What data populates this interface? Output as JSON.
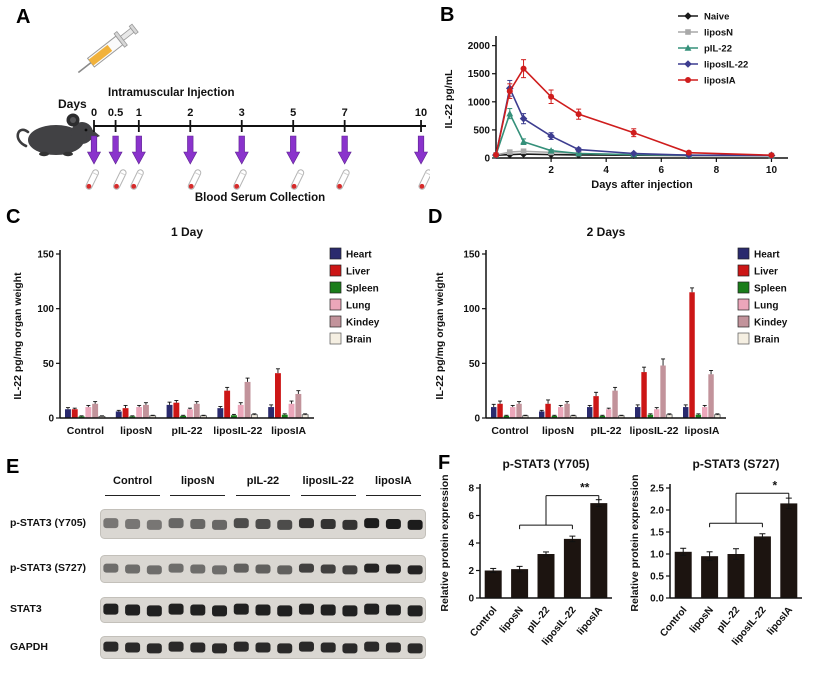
{
  "panel_labels": {
    "a": "A",
    "b": "B",
    "c": "C",
    "d": "D",
    "e": "E",
    "f": "F"
  },
  "panel_a": {
    "days_label": "Days",
    "injection_label": "Intramuscular Injection",
    "collection_label": "Blood Serum Collection",
    "timeline_days": [
      "0",
      "0.5",
      "1",
      "2",
      "3",
      "5",
      "7",
      "10"
    ],
    "arrow_color": "#8a33cc"
  },
  "panel_e": {
    "groups": [
      "Control",
      "liposN",
      "pIL-22",
      "liposIL-22",
      "liposIA"
    ],
    "rows": [
      "p-STAT3 (Y705)",
      "p-STAT3 (S727)",
      "STAT3",
      "GAPDH"
    ],
    "lanes_per_group": 3
  },
  "chart_data": [
    {
      "id": "b",
      "type": "line",
      "title": "",
      "xlabel": "Days after injection",
      "ylabel": "IL-22 pg/mL",
      "xlim": [
        0,
        10.6
      ],
      "ylim": [
        0,
        2100
      ],
      "xticks": [
        2,
        4,
        6,
        8,
        10
      ],
      "yticks": [
        0,
        500,
        1000,
        1500,
        2000
      ],
      "x": [
        0,
        0.5,
        1,
        2,
        3,
        5,
        7,
        10
      ],
      "series": [
        {
          "name": "Naive",
          "color": "#1a1a1a",
          "marker": "diamond",
          "values": [
            50,
            60,
            70,
            60,
            55,
            50,
            45,
            45
          ],
          "errors": [
            0,
            10,
            10,
            10,
            0,
            0,
            0,
            0
          ]
        },
        {
          "name": "liposN",
          "color": "#a9a9a9",
          "marker": "square",
          "values": [
            55,
            105,
            120,
            100,
            80,
            60,
            50,
            45
          ],
          "errors": [
            0,
            20,
            20,
            15,
            10,
            0,
            0,
            0
          ]
        },
        {
          "name": "pIL-22",
          "color": "#35907a",
          "marker": "triangle",
          "values": [
            55,
            790,
            290,
            130,
            80,
            60,
            50,
            45
          ],
          "errors": [
            0,
            90,
            50,
            20,
            10,
            0,
            0,
            0
          ]
        },
        {
          "name": "liposIL-22",
          "color": "#3d3d90",
          "marker": "diamond",
          "values": [
            55,
            1240,
            700,
            390,
            150,
            80,
            50,
            45
          ],
          "errors": [
            0,
            140,
            90,
            60,
            30,
            10,
            0,
            0
          ]
        },
        {
          "name": "liposIA",
          "color": "#cf1d1d",
          "marker": "circle",
          "values": [
            55,
            1190,
            1590,
            1090,
            780,
            450,
            95,
            50
          ],
          "errors": [
            0,
            130,
            160,
            120,
            90,
            70,
            25,
            10
          ]
        }
      ]
    },
    {
      "id": "c",
      "type": "bar",
      "title": "1 Day",
      "ylabel": "IL-22 pg/mg organ weight",
      "ylim": [
        0,
        150
      ],
      "yticks": [
        0,
        50,
        100,
        150
      ],
      "ytick_labels": [
        "0",
        "50",
        "100",
        "150"
      ],
      "categories": [
        "Control",
        "liposN",
        "pIL-22",
        "liposIL-22",
        "liposIA"
      ],
      "series": [
        {
          "name": "Heart",
          "color": "#2a2a6e",
          "values": [
            8,
            6,
            12,
            9,
            10
          ],
          "errors": [
            1.5,
            1,
            2.5,
            1.5,
            2
          ]
        },
        {
          "name": "Liver",
          "color": "#cc1616",
          "values": [
            8,
            9,
            14,
            25,
            41
          ],
          "errors": [
            1,
            2.5,
            2,
            3,
            4
          ]
        },
        {
          "name": "Spleen",
          "color": "#1a7d1a",
          "values": [
            1.5,
            1.5,
            2,
            2.5,
            3
          ],
          "errors": [
            0.5,
            0.5,
            0.5,
            0.8,
            0.8
          ]
        },
        {
          "name": "Lung",
          "color": "#eba6ba",
          "values": [
            10,
            10,
            8,
            12,
            13
          ],
          "errors": [
            1.5,
            1.5,
            1,
            2,
            2.5
          ]
        },
        {
          "name": "Kindey",
          "color": "#c2939b",
          "values": [
            13,
            12,
            13,
            33,
            22
          ],
          "errors": [
            2,
            2,
            2,
            3.5,
            3
          ]
        },
        {
          "name": "Brain",
          "color": "#f5efe2",
          "stroke": "#555555",
          "values": [
            1.5,
            2,
            2,
            3,
            3
          ],
          "errors": [
            0.5,
            0.5,
            0.5,
            0.8,
            0.8
          ]
        }
      ]
    },
    {
      "id": "d",
      "type": "bar",
      "title": "2 Days",
      "ylabel": "IL-22 pg/mg organ weight",
      "ylim": [
        0,
        150
      ],
      "yticks": [
        0,
        50,
        100,
        150
      ],
      "ytick_labels": [
        "0",
        "50",
        "100",
        "150"
      ],
      "categories": [
        "Control",
        "liposN",
        "pIL-22",
        "liposIL-22",
        "liposIA"
      ],
      "series": [
        {
          "name": "Heart",
          "color": "#2a2a6e",
          "values": [
            10,
            6,
            10,
            10,
            10
          ],
          "errors": [
            2.5,
            1,
            1.5,
            2,
            2
          ]
        },
        {
          "name": "Liver",
          "color": "#cc1616",
          "values": [
            13,
            13,
            20,
            42,
            115
          ],
          "errors": [
            2.5,
            3.5,
            3.5,
            4.5,
            4
          ]
        },
        {
          "name": "Spleen",
          "color": "#1a7d1a",
          "values": [
            2,
            2,
            2,
            3,
            3
          ],
          "errors": [
            0.5,
            0.5,
            0.5,
            0.8,
            0.8
          ]
        },
        {
          "name": "Lung",
          "color": "#eba6ba",
          "values": [
            10,
            10,
            8,
            8,
            10
          ],
          "errors": [
            1.5,
            1.5,
            1,
            1.5,
            1.5
          ]
        },
        {
          "name": "Kindey",
          "color": "#c2939b",
          "values": [
            13,
            13,
            25,
            48,
            40
          ],
          "errors": [
            2,
            2,
            3,
            6,
            3.5
          ]
        },
        {
          "name": "Brain",
          "color": "#f5efe2",
          "stroke": "#555555",
          "values": [
            2,
            2,
            2,
            3,
            3
          ],
          "errors": [
            0.5,
            0.5,
            0.5,
            0.8,
            0.8
          ]
        }
      ]
    },
    {
      "id": "f1",
      "type": "bar",
      "title": "p-STAT3 (Y705)",
      "ylabel": "Relative protein expression",
      "ylim": [
        0,
        8
      ],
      "yticks": [
        0,
        2,
        4,
        6,
        8
      ],
      "ytick_labels": [
        "0",
        "2",
        "4",
        "6",
        "8"
      ],
      "categories": [
        "Control",
        "liposN",
        "pIL-22",
        "liposIL-22",
        "liposIA"
      ],
      "bar_color": "#1c1410",
      "values": [
        2.0,
        2.1,
        3.2,
        4.3,
        6.9
      ],
      "errors": [
        0.15,
        0.2,
        0.15,
        0.2,
        0.25
      ],
      "sig": {
        "label": "**",
        "bracket": [
          1,
          3
        ],
        "y_bracket": 5.3,
        "target": 4,
        "y_line": 7.45
      }
    },
    {
      "id": "f2",
      "type": "bar",
      "title": "p-STAT3 (S727)",
      "ylabel": "Relative protein expression",
      "ylim": [
        0,
        2.5
      ],
      "yticks": [
        0,
        0.5,
        1,
        1.5,
        2,
        2.5
      ],
      "ytick_labels": [
        "0.0",
        "0.5",
        "1.0",
        "1.5",
        "2.0",
        "2.5"
      ],
      "categories": [
        "Control",
        "liposN",
        "pIL-22",
        "liposIL-22",
        "liposIA"
      ],
      "bar_color": "#1c1410",
      "values": [
        1.05,
        0.95,
        1.0,
        1.4,
        2.15
      ],
      "errors": [
        0.08,
        0.1,
        0.12,
        0.06,
        0.12
      ],
      "sig": {
        "label": "*",
        "bracket": [
          1,
          3
        ],
        "y_bracket": 1.7,
        "target": 4,
        "y_line": 2.38
      }
    }
  ]
}
